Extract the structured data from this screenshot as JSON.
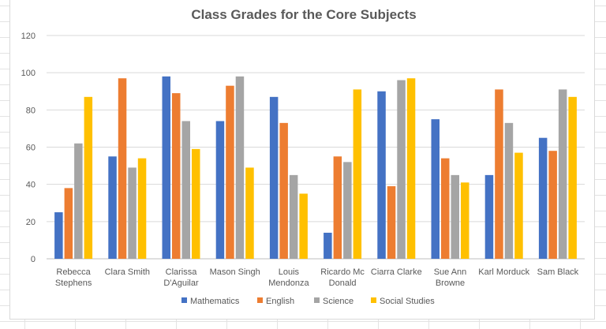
{
  "chart_data": {
    "type": "bar",
    "title": "Class Grades for the Core Subjects",
    "xlabel": "",
    "ylabel": "",
    "ylim": [
      0,
      120
    ],
    "yticks": [
      0,
      20,
      40,
      60,
      80,
      100,
      120
    ],
    "grid": true,
    "legend_position": "bottom",
    "categories": [
      [
        "Rebecca",
        "Stephens"
      ],
      [
        "Clara Smith"
      ],
      [
        "Clarissa",
        "D'Aguilar"
      ],
      [
        "Mason Singh"
      ],
      [
        "Louis",
        "Mendonza"
      ],
      [
        "Ricardo Mc",
        "Donald"
      ],
      [
        "Ciarra Clarke"
      ],
      [
        "Sue Ann",
        "Browne"
      ],
      [
        "Karl Morduck"
      ],
      [
        "Sam Black"
      ]
    ],
    "series": [
      {
        "name": "Mathematics",
        "color": "#4472c4",
        "values": [
          25,
          55,
          98,
          74,
          87,
          14,
          90,
          75,
          45,
          65
        ]
      },
      {
        "name": "English",
        "color": "#ed7d31",
        "values": [
          38,
          97,
          89,
          93,
          73,
          55,
          39,
          54,
          91,
          58
        ]
      },
      {
        "name": "Science",
        "color": "#a5a5a5",
        "values": [
          62,
          49,
          74,
          98,
          45,
          52,
          96,
          45,
          73,
          91
        ]
      },
      {
        "name": "Social Studies",
        "color": "#ffc000",
        "values": [
          87,
          54,
          59,
          49,
          35,
          91,
          97,
          41,
          57,
          87
        ]
      }
    ]
  }
}
